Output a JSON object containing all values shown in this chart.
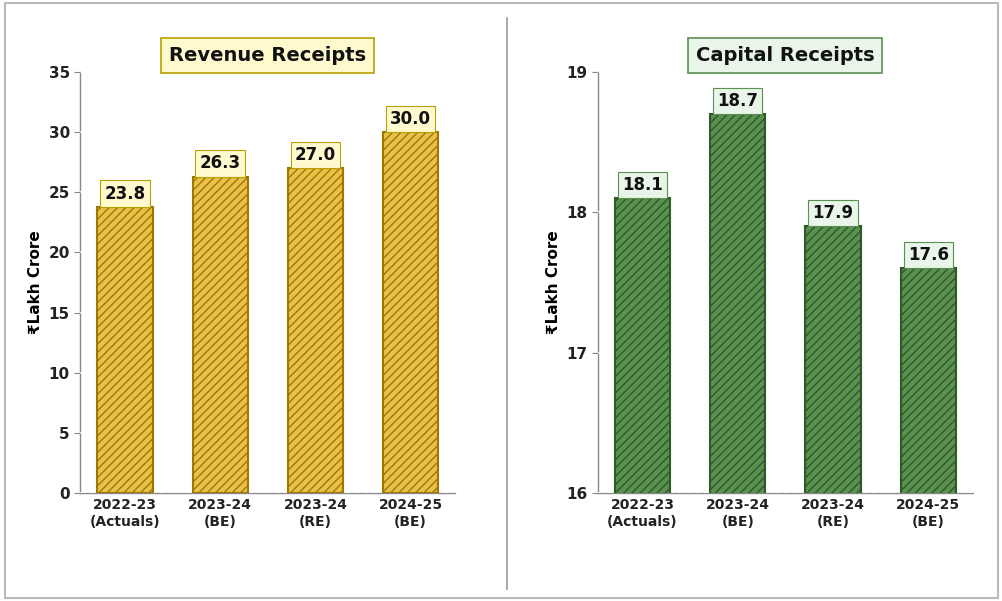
{
  "revenue": {
    "title": "Revenue Receipts",
    "title_bg": "#fffacd",
    "title_edge": "#b8a000",
    "categories": [
      "2022-23\n(Actuals)",
      "2023-24\n(BE)",
      "2023-24\n(RE)",
      "2024-25\n(BE)"
    ],
    "values": [
      23.8,
      26.3,
      27.0,
      30.0
    ],
    "bar_facecolor": "#e8c04a",
    "bar_edge_color": "#a07800",
    "hatch": "////",
    "hatch_color": "#ffffff",
    "ylim": [
      0,
      35
    ],
    "yticks": [
      0,
      5,
      10,
      15,
      20,
      25,
      30,
      35
    ],
    "ylabel": "₹Lakh Crore",
    "label_bg": "#fffacd",
    "label_edge": "#b8a000"
  },
  "capital": {
    "title": "Capital Receipts",
    "title_bg": "#e8f5e8",
    "title_edge": "#5a9050",
    "categories": [
      "2022-23\n(Actuals)",
      "2023-24\n(BE)",
      "2023-24\n(RE)",
      "2024-25\n(BE)"
    ],
    "values": [
      18.1,
      18.7,
      17.9,
      17.6
    ],
    "bar_facecolor": "#5a9050",
    "bar_edge_color": "#2d5a28",
    "hatch": "////",
    "hatch_color": "#ffffff",
    "ylim": [
      16,
      19
    ],
    "yticks": [
      16,
      17,
      18,
      19
    ],
    "ylabel": "₹Lakh Crore",
    "label_bg": "#e8f5e8",
    "label_edge": "#5a9050"
  },
  "figure_bg": "#ffffff",
  "divider_color": "#999999",
  "border_color": "#bbbbbb"
}
